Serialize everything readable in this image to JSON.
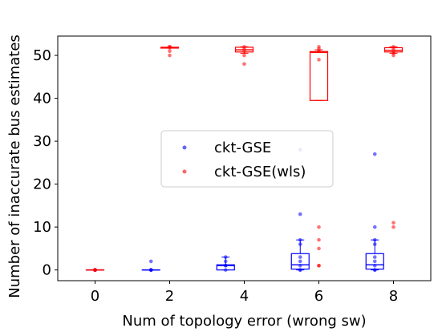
{
  "chart_data": {
    "type": "box",
    "xlabel": "Num of topology error (wrong sw)",
    "ylabel": "Number of inaccurate bus estimates",
    "xlim": [
      -1,
      9
    ],
    "ylim": [
      -2.5,
      54.5
    ],
    "xticks": [
      0,
      2,
      4,
      6,
      8
    ],
    "yticks": [
      0,
      10,
      20,
      30,
      40,
      50
    ],
    "legend": {
      "placement": "center"
    },
    "series": [
      {
        "name": "ckt-GSE",
        "color": "#0000ff",
        "boxes": [
          {
            "x": 0,
            "q1": 0,
            "median": 0,
            "q3": 0,
            "whislo": 0,
            "whishi": 0
          },
          {
            "x": 1.5,
            "q1": 0,
            "median": 0,
            "q3": 0,
            "whislo": 0,
            "whishi": 0
          },
          {
            "x": 3.5,
            "q1": 0,
            "median": 1,
            "q3": 1.2,
            "whislo": 0,
            "whishi": 3
          },
          {
            "x": 5.5,
            "q1": 0.2,
            "median": 1.2,
            "q3": 3.8,
            "whislo": 0,
            "whishi": 7
          },
          {
            "x": 7.5,
            "q1": 0.2,
            "median": 1.2,
            "q3": 3.8,
            "whislo": 0,
            "whishi": 7
          }
        ],
        "points": [
          {
            "x": 0,
            "y": [
              0,
              0,
              0,
              0,
              0
            ]
          },
          {
            "x": 1.5,
            "y": [
              0,
              0,
              0,
              0,
              2
            ]
          },
          {
            "x": 3.5,
            "y": [
              0,
              1,
              1,
              2,
              3
            ]
          },
          {
            "x": 5.5,
            "y": [
              0,
              0,
              1,
              2,
              3,
              6,
              7,
              13,
              28
            ]
          },
          {
            "x": 7.5,
            "y": [
              0,
              0,
              1,
              2,
              3,
              6,
              7,
              10,
              27
            ]
          }
        ]
      },
      {
        "name": "ckt-GSE(wls)",
        "color": "#ff0000",
        "boxes": [
          {
            "x": 0,
            "q1": 0,
            "median": 0,
            "q3": 0,
            "whislo": 0,
            "whishi": 0
          },
          {
            "x": 2,
            "q1": 51.7,
            "median": 51.8,
            "q3": 51.9,
            "whislo": 51.7,
            "whishi": 51.9
          },
          {
            "x": 4,
            "q1": 50.8,
            "median": 51.3,
            "q3": 51.9,
            "whislo": 50.5,
            "whishi": 52
          },
          {
            "x": 6,
            "q1": 39.5,
            "median": 50.7,
            "q3": 50.9,
            "whislo": 39.5,
            "whishi": 51.3
          },
          {
            "x": 8,
            "q1": 50.8,
            "median": 51.2,
            "q3": 51.8,
            "whislo": 50.5,
            "whishi": 52
          }
        ],
        "points": [
          {
            "x": 0,
            "y": [
              0,
              0,
              0,
              0,
              0
            ]
          },
          {
            "x": 2,
            "y": [
              50,
              51,
              51.8,
              52,
              52
            ]
          },
          {
            "x": 4,
            "y": [
              48,
              50,
              51,
              51.5,
              52
            ]
          },
          {
            "x": 6,
            "y": [
              1,
              1,
              5,
              7,
              10,
              49,
              51,
              51.5,
              52
            ]
          },
          {
            "x": 8,
            "y": [
              10,
              11,
              50,
              50.5,
              51,
              51.5,
              52
            ]
          }
        ]
      }
    ]
  }
}
